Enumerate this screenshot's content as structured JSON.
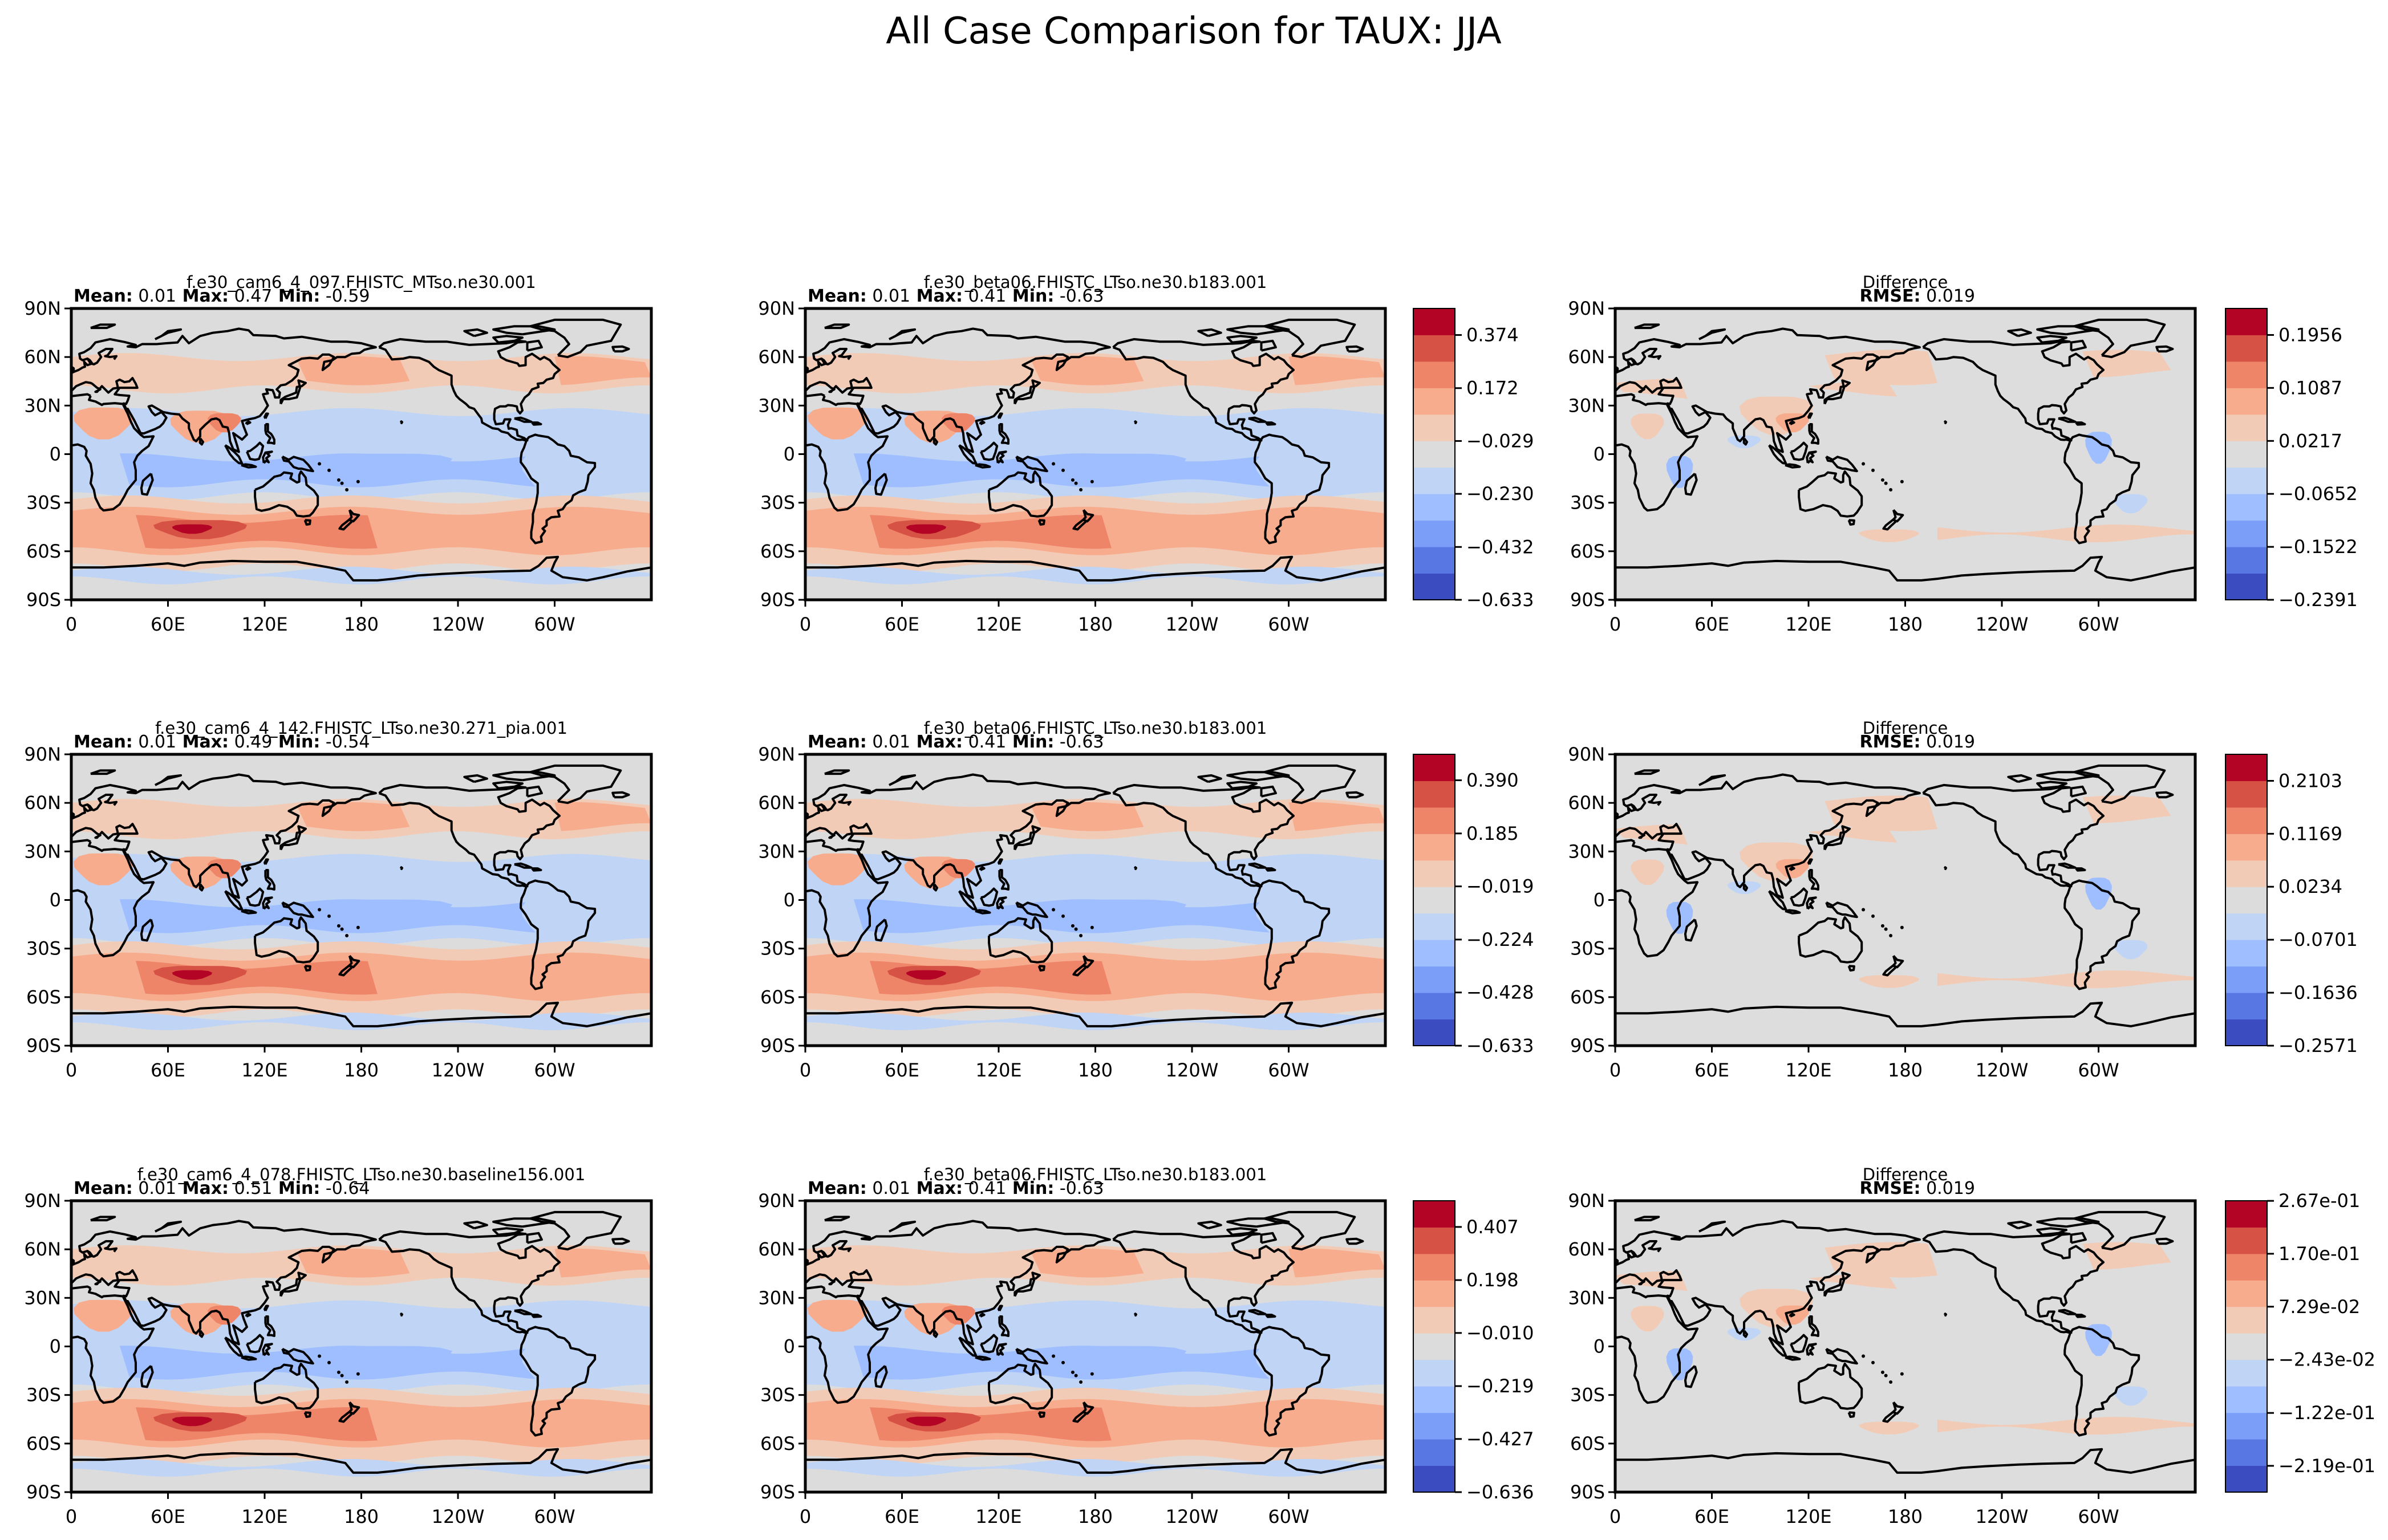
{
  "figure_title": "All Case Comparison for TAUX: JJA",
  "colors": {
    "frame": "#000000",
    "coast": "#000000",
    "diff_background": "#dddddd",
    "palette": [
      "#3b4cc0",
      "#5977e3",
      "#7b9ff9",
      "#9ebeff",
      "#c0d4f5",
      "#dddcdc",
      "#f2cbb7",
      "#f7ac8e",
      "#ee8468",
      "#d65244",
      "#b40426"
    ]
  },
  "x_ticks": [
    "0",
    "60E",
    "120E",
    "180",
    "120W",
    "60W"
  ],
  "y_ticks": [
    "90N",
    "60N",
    "30N",
    "0",
    "30S",
    "60S",
    "90S"
  ],
  "stat_labels": {
    "mean": "Mean:",
    "max": "Max:",
    "min": "Min:",
    "rmse": "RMSE:"
  },
  "chart_data": [
    {
      "type": "heatmap",
      "row": 1,
      "col": 1,
      "title": "f.e30_cam6_4_097.FHISTC_MTso.ne30.001",
      "stats": {
        "mean": "0.01",
        "max": "0.47",
        "min": "-0.59"
      },
      "xlabels": [
        "0",
        "60E",
        "120E",
        "180",
        "120W",
        "60W"
      ],
      "ylabels": [
        "90N",
        "60N",
        "30N",
        "0",
        "30S",
        "60S",
        "90S"
      ],
      "variable": "TAUX",
      "season": "JJA"
    },
    {
      "type": "heatmap",
      "row": 1,
      "col": 2,
      "title": "f.e30_beta06.FHISTC_LTso.ne30.b183.001",
      "stats": {
        "mean": "0.01",
        "max": "0.41",
        "min": "-0.63"
      },
      "xlabels": [
        "0",
        "60E",
        "120E",
        "180",
        "120W",
        "60W"
      ],
      "ylabels": [
        "90N",
        "60N",
        "30N",
        "0",
        "30S",
        "60S",
        "90S"
      ],
      "colorbar": {
        "ticks": [
          "0.374",
          "0.172",
          "-0.029",
          "-0.230",
          "-0.432",
          "-0.633"
        ],
        "range": [
          -0.633,
          0.475
        ]
      }
    },
    {
      "type": "heatmap",
      "row": 1,
      "col": 3,
      "title": "Difference",
      "stats": {
        "rmse": "0.019"
      },
      "xlabels": [
        "0",
        "60E",
        "120E",
        "180",
        "120W",
        "60W"
      ],
      "ylabels": [
        "90N",
        "60N",
        "30N",
        "0",
        "30S",
        "60S",
        "90S"
      ],
      "colorbar": {
        "ticks": [
          "0.1956",
          "0.1087",
          "0.0217",
          "-0.0652",
          "-0.1522",
          "-0.2391"
        ],
        "range": [
          -0.2391,
          0.2391
        ]
      }
    },
    {
      "type": "heatmap",
      "row": 2,
      "col": 1,
      "title": "f.e30_cam6_4_142.FHISTC_LTso.ne30.271_pia.001",
      "stats": {
        "mean": "0.01",
        "max": "0.49",
        "min": "-0.54"
      },
      "xlabels": [
        "0",
        "60E",
        "120E",
        "180",
        "120W",
        "60W"
      ],
      "ylabels": [
        "90N",
        "60N",
        "30N",
        "0",
        "30S",
        "60S",
        "90S"
      ]
    },
    {
      "type": "heatmap",
      "row": 2,
      "col": 2,
      "title": "f.e30_beta06.FHISTC_LTso.ne30.b183.001",
      "stats": {
        "mean": "0.01",
        "max": "0.41",
        "min": "-0.63"
      },
      "xlabels": [
        "0",
        "60E",
        "120E",
        "180",
        "120W",
        "60W"
      ],
      "ylabels": [
        "90N",
        "60N",
        "30N",
        "0",
        "30S",
        "60S",
        "90S"
      ],
      "colorbar": {
        "ticks": [
          "0.390",
          "0.185",
          "-0.019",
          "-0.224",
          "-0.428",
          "-0.633"
        ],
        "range": [
          -0.633,
          0.49
        ]
      }
    },
    {
      "type": "heatmap",
      "row": 2,
      "col": 3,
      "title": "Difference",
      "stats": {
        "rmse": "0.019"
      },
      "xlabels": [
        "0",
        "60E",
        "120E",
        "180",
        "120W",
        "60W"
      ],
      "ylabels": [
        "90N",
        "60N",
        "30N",
        "0",
        "30S",
        "60S",
        "90S"
      ],
      "colorbar": {
        "ticks": [
          "0.2103",
          "0.1169",
          "0.0234",
          "-0.0701",
          "-0.1636",
          "-0.2571"
        ],
        "range": [
          -0.2571,
          0.2571
        ]
      }
    },
    {
      "type": "heatmap",
      "row": 3,
      "col": 1,
      "title": "f.e30_cam6_4_078.FHISTC_LTso.ne30.baseline156.001",
      "stats": {
        "mean": "0.01",
        "max": "0.51",
        "min": "-0.64"
      },
      "xlabels": [
        "0",
        "60E",
        "120E",
        "180",
        "120W",
        "60W"
      ],
      "ylabels": [
        "90N",
        "60N",
        "30N",
        "0",
        "30S",
        "60S",
        "90S"
      ]
    },
    {
      "type": "heatmap",
      "row": 3,
      "col": 2,
      "title": "f.e30_beta06.FHISTC_LTso.ne30.b183.001",
      "stats": {
        "mean": "0.01",
        "max": "0.41",
        "min": "-0.63"
      },
      "xlabels": [
        "0",
        "60E",
        "120E",
        "180",
        "120W",
        "60W"
      ],
      "ylabels": [
        "90N",
        "60N",
        "30N",
        "0",
        "30S",
        "60S",
        "90S"
      ],
      "colorbar": {
        "ticks": [
          "0.407",
          "0.198",
          "-0.010",
          "-0.219",
          "-0.427",
          "-0.636"
        ],
        "range": [
          -0.636,
          0.51
        ]
      }
    },
    {
      "type": "heatmap",
      "row": 3,
      "col": 3,
      "title": "Difference",
      "stats": {
        "rmse": "0.019"
      },
      "xlabels": [
        "0",
        "60E",
        "120E",
        "180",
        "120W",
        "60W"
      ],
      "ylabels": [
        "90N",
        "60N",
        "30N",
        "0",
        "30S",
        "60S",
        "90S"
      ],
      "colorbar": {
        "ticks": [
          "2.67e-01",
          "1.70e-01",
          "7.29e-02",
          "-2.43e-02",
          "-1.22e-01",
          "-2.19e-01"
        ],
        "range": [
          -0.2672,
          0.2672
        ]
      }
    }
  ]
}
